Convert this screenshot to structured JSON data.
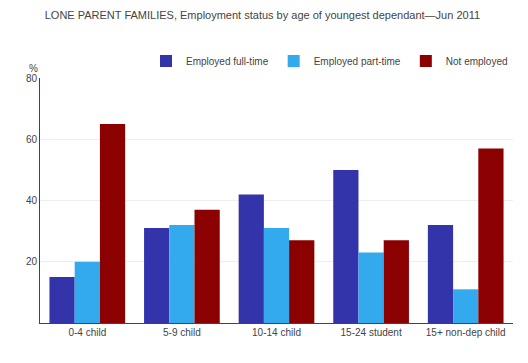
{
  "chart_data": {
    "type": "bar",
    "title": "LONE PARENT FAMILIES, Employment status by age of youngest dependant—Jun 2011",
    "ylabel": "%",
    "categories": [
      "0-4 child",
      "5-9 child",
      "10-14 child",
      "15-24 student",
      "15+ non-dep child"
    ],
    "series": [
      {
        "name": "Employed full-time",
        "color": "#3333aa",
        "values": [
          15,
          31,
          42,
          50,
          32
        ]
      },
      {
        "name": "Employed part-time",
        "color": "#33aaee",
        "values": [
          20,
          32,
          31,
          23,
          11
        ]
      },
      {
        "name": "Not employed",
        "color": "#8b0000",
        "values": [
          65,
          37,
          27,
          27,
          57
        ]
      }
    ],
    "ylim": [
      0,
      80
    ],
    "yticks": [
      20,
      40,
      60,
      80
    ],
    "grid": true,
    "legend": "upper right"
  }
}
